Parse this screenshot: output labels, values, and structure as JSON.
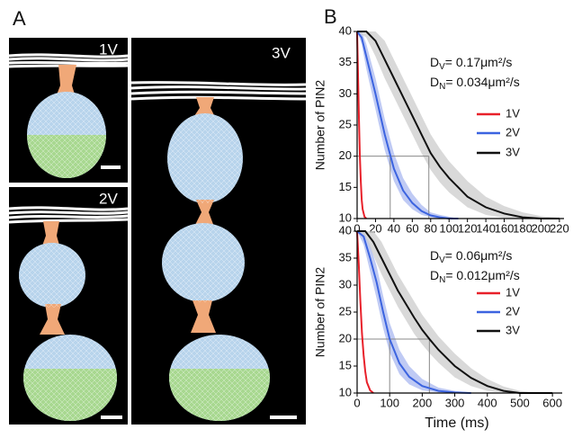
{
  "panels": {
    "a_label": "A",
    "b_label": "B",
    "image_labels": [
      "1V",
      "2V",
      "3V"
    ]
  },
  "chart_data": [
    {
      "type": "line",
      "y_label": "Number of PIN2",
      "xlim": [
        0,
        225
      ],
      "xticks": [
        0,
        20,
        40,
        60,
        80,
        100,
        120,
        140,
        160,
        180,
        200,
        220
      ],
      "ylim": [
        10,
        40
      ],
      "yticks": [
        10,
        15,
        20,
        25,
        30,
        35,
        40
      ],
      "annotations": [
        {
          "symbol": "D",
          "subscript": "V",
          "text": "= 0.17μm²/s"
        },
        {
          "symbol": "D",
          "subscript": "N",
          "text": "= 0.034μm²/s"
        }
      ],
      "guides": {
        "y": 20,
        "x": [
          36,
          78
        ]
      },
      "series": [
        {
          "name": "1V",
          "color": "#e8202a",
          "x": [
            0,
            1,
            2,
            3,
            4,
            5,
            6,
            8,
            10
          ],
          "values": [
            40,
            33,
            26,
            20,
            16,
            13,
            11.5,
            10.3,
            10
          ]
        },
        {
          "name": "2V",
          "color": "#3c64e0",
          "band_color": "#a9b8f0",
          "x": [
            0,
            5,
            10,
            20,
            30,
            40,
            50,
            60,
            70,
            80,
            90,
            100,
            110
          ],
          "values": [
            40,
            39,
            36,
            30,
            23.5,
            18,
            14.5,
            12.5,
            11.2,
            10.5,
            10.2,
            10,
            10
          ],
          "band_lower": [
            40,
            38,
            34,
            27.5,
            21,
            16,
            13,
            11.5,
            10.6,
            10.2,
            10,
            10,
            10
          ],
          "band_upper": [
            40,
            40,
            38,
            32.5,
            26,
            20.5,
            16.5,
            14,
            12.2,
            11,
            10.6,
            10.3,
            10
          ]
        },
        {
          "name": "3V",
          "color": "#111111",
          "band_color": "#cccccc",
          "x": [
            0,
            10,
            20,
            30,
            40,
            50,
            60,
            70,
            80,
            90,
            100,
            120,
            140,
            160,
            180,
            200,
            220
          ],
          "values": [
            40,
            40,
            38.5,
            35.5,
            32.5,
            29.5,
            26.5,
            23.5,
            20.5,
            18.3,
            16.5,
            13.5,
            11.8,
            10.8,
            10.2,
            10,
            10
          ],
          "band_lower": [
            40,
            39,
            36,
            32.5,
            29.5,
            26.5,
            23.5,
            20.5,
            17.8,
            15.8,
            14.2,
            11.8,
            10.6,
            10.1,
            10,
            10,
            10
          ],
          "band_upper": [
            40,
            40,
            40,
            38.5,
            35.5,
            32.5,
            29.5,
            26.5,
            23.5,
            21.2,
            19.2,
            16,
            13.5,
            12,
            11,
            10.4,
            10.1
          ]
        }
      ]
    },
    {
      "type": "line",
      "y_label": "Number of PIN2",
      "x_label": "Time (ms)",
      "xlim": [
        0,
        630
      ],
      "xticks": [
        0,
        100,
        200,
        300,
        400,
        500,
        600
      ],
      "ylim": [
        10,
        40
      ],
      "yticks": [
        10,
        15,
        20,
        25,
        30,
        35,
        40
      ],
      "annotations": [
        {
          "symbol": "D",
          "subscript": "V",
          "text": "= 0.06μm²/s"
        },
        {
          "symbol": "D",
          "subscript": "N",
          "text": "= 0.012μm²/s"
        }
      ],
      "guides": {
        "y": 20,
        "x": [
          100,
          222
        ]
      },
      "series": [
        {
          "name": "1V",
          "color": "#e8202a",
          "x": [
            0,
            5,
            10,
            15,
            20,
            25,
            30,
            40,
            50
          ],
          "values": [
            40,
            34,
            27,
            21,
            17,
            14,
            12,
            10.5,
            10
          ]
        },
        {
          "name": "2V",
          "color": "#3c64e0",
          "band_color": "#a9b8f0",
          "x": [
            0,
            20,
            40,
            60,
            80,
            100,
            130,
            160,
            200,
            250,
            300,
            350
          ],
          "values": [
            40,
            39,
            35,
            30.5,
            25,
            20,
            15.5,
            13,
            11.3,
            10.4,
            10.1,
            10
          ],
          "band_lower": [
            40,
            37.5,
            32.5,
            27.5,
            22,
            17.5,
            13.5,
            11.6,
            10.5,
            10.1,
            10,
            10
          ],
          "band_upper": [
            40,
            40,
            37.5,
            33.5,
            28,
            23,
            18,
            15,
            12.6,
            11,
            10.4,
            10.1
          ]
        },
        {
          "name": "3V",
          "color": "#111111",
          "band_color": "#cccccc",
          "x": [
            0,
            25,
            50,
            75,
            100,
            125,
            150,
            175,
            200,
            225,
            250,
            300,
            350,
            400,
            450,
            500,
            550,
            600
          ],
          "values": [
            40,
            40,
            38,
            35,
            32,
            29,
            26.5,
            24,
            21.7,
            19.8,
            18,
            15,
            12.8,
            11.3,
            10.4,
            10,
            10,
            10
          ],
          "band_lower": [
            40,
            39,
            35.5,
            32,
            29,
            26,
            23.5,
            21,
            19,
            17.2,
            15.6,
            12.9,
            11.3,
            10.4,
            10.1,
            10,
            10,
            10
          ],
          "band_upper": [
            40,
            40,
            40,
            38,
            35,
            32,
            29.5,
            27,
            24.5,
            22.5,
            20.5,
            17.3,
            14.6,
            12.6,
            11.2,
            10.4,
            10.1,
            10
          ]
        }
      ]
    }
  ]
}
